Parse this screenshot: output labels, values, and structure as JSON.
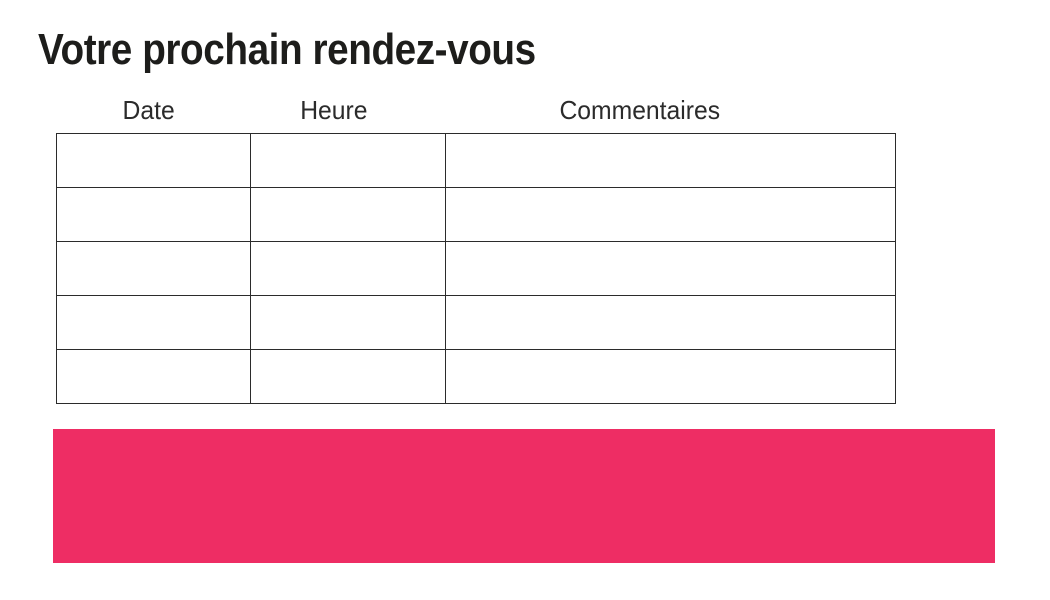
{
  "title": "Votre prochain rendez-vous",
  "table": {
    "headers": [
      "Date",
      "Heure",
      "Commentaires"
    ],
    "row_count": 5,
    "rows": [
      [
        "",
        "",
        ""
      ],
      [
        "",
        "",
        ""
      ],
      [
        "",
        "",
        ""
      ],
      [
        "",
        "",
        ""
      ],
      [
        "",
        "",
        ""
      ]
    ]
  },
  "colors": {
    "accent": "#EE2D64",
    "border": "#2b2b2b",
    "title_text": "#1d1d1b",
    "header_text": "#2b2b2b",
    "background": "#ffffff"
  }
}
